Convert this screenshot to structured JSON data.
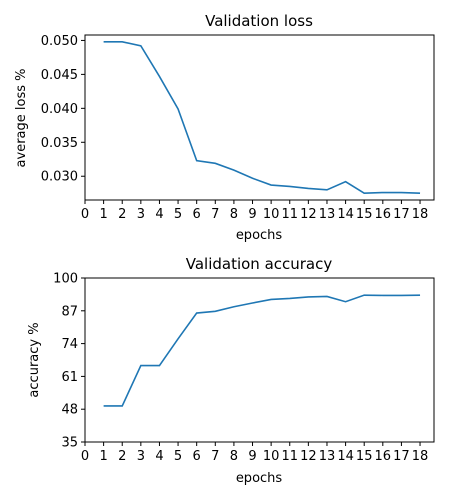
{
  "colors": {
    "line": "#1f77b4",
    "axes": "#000000",
    "background": "#ffffff"
  },
  "chart_data": [
    {
      "type": "line",
      "title": "Validation loss",
      "xlabel": "epochs",
      "ylabel": "average loss %",
      "xlim": [
        0,
        18.75
      ],
      "ylim": [
        0.0265,
        0.0508
      ],
      "xticks": [
        0,
        1,
        2,
        3,
        4,
        5,
        6,
        7,
        8,
        9,
        10,
        11,
        12,
        13,
        14,
        15,
        16,
        17,
        18
      ],
      "yticks": [
        0.03,
        0.035,
        0.04,
        0.045,
        0.05
      ],
      "ytick_labels": [
        "0.030",
        "0.035",
        "0.040",
        "0.045",
        "0.050"
      ],
      "grid": false,
      "x": [
        1,
        2,
        3,
        4,
        5,
        6,
        7,
        8,
        9,
        10,
        11,
        12,
        13,
        14,
        15,
        16,
        17,
        18
      ],
      "values": [
        0.0498,
        0.0498,
        0.0492,
        0.0447,
        0.0399,
        0.0323,
        0.0319,
        0.0309,
        0.0297,
        0.0287,
        0.0285,
        0.0282,
        0.028,
        0.0292,
        0.0275,
        0.0276,
        0.0276,
        0.0275
      ]
    },
    {
      "type": "line",
      "title": "Validation accuracy",
      "xlabel": "epochs",
      "ylabel": "accuracy %",
      "xlim": [
        0,
        18.75
      ],
      "ylim": [
        35,
        100
      ],
      "xticks": [
        0,
        1,
        2,
        3,
        4,
        5,
        6,
        7,
        8,
        9,
        10,
        11,
        12,
        13,
        14,
        15,
        16,
        17,
        18
      ],
      "yticks": [
        35,
        48,
        61,
        74,
        87,
        100
      ],
      "ytick_labels": [
        "35",
        "48",
        "61",
        "74",
        "87",
        "100"
      ],
      "grid": false,
      "x": [
        1,
        2,
        3,
        4,
        5,
        6,
        7,
        8,
        9,
        10,
        11,
        12,
        13,
        14,
        15,
        16,
        17,
        18
      ],
      "values": [
        49.3,
        49.3,
        65.3,
        65.3,
        75.9,
        86.1,
        86.8,
        88.6,
        90.1,
        91.5,
        91.9,
        92.5,
        92.7,
        90.6,
        93.2,
        93.1,
        93.1,
        93.2
      ]
    }
  ]
}
